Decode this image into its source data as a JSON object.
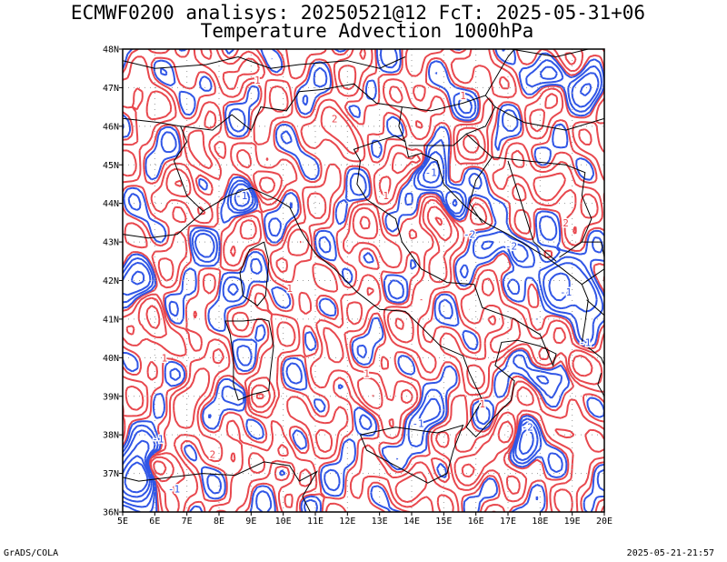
{
  "header": {
    "title_line1": "ECMWF0200 analisys: 20250521@12 FcT: 2025-05-31+06",
    "title_line2": "Temperature Advection 1000hPa"
  },
  "footer": {
    "left": "GrADS/COLA",
    "right": "2025-05-21-21:57"
  },
  "map": {
    "lat_labels": [
      "48N",
      "47N",
      "46N",
      "45N",
      "44N",
      "43N",
      "42N",
      "41N",
      "40N",
      "39N",
      "38N",
      "37N",
      "36N"
    ],
    "lon_labels": [
      "5E",
      "6E",
      "7E",
      "8E",
      "9E",
      "10E",
      "11E",
      "12E",
      "13E",
      "14E",
      "15E",
      "16E",
      "17E",
      "18E",
      "19E",
      "20E"
    ],
    "colors": {
      "positive_contour": "#e8474d",
      "negative_contour": "#2f55e6",
      "coastline": "#000000",
      "grid": "#9a9a9a"
    },
    "contour_labels": {
      "positive": [
        "1",
        "2",
        "1",
        "1",
        "2",
        "1",
        "1",
        "2",
        "1",
        "1"
      ],
      "negative": [
        "-1",
        "-2",
        "-1",
        "-1",
        "-2",
        "-1",
        "-1",
        "-2",
        "-1",
        "-1"
      ]
    }
  }
}
